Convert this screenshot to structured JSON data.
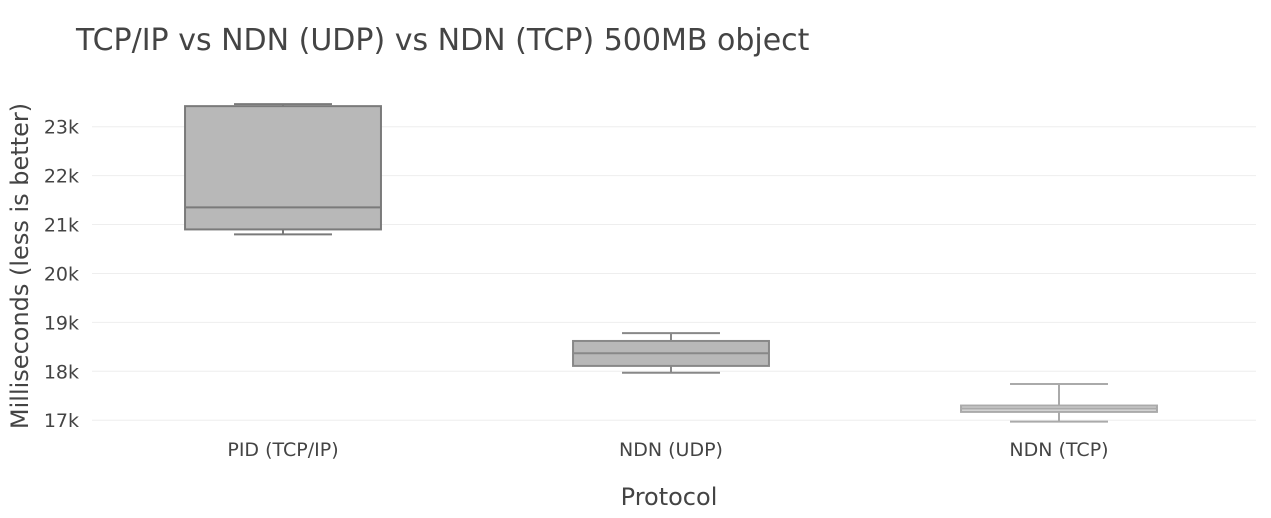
{
  "chart_data": {
    "type": "box",
    "title": "TCP/IP vs NDN (UDP) vs NDN (TCP) 500MB object",
    "xlabel": "Protocol",
    "ylabel": "Milliseconds (less is better)",
    "ylim": [
      16800,
      23750
    ],
    "yticks": [
      17000,
      18000,
      19000,
      20000,
      21000,
      22000,
      23000
    ],
    "ytick_labels": [
      "17k",
      "18k",
      "19k",
      "20k",
      "21k",
      "22k",
      "23k"
    ],
    "grid": true,
    "categories": [
      "PID (TCP/IP)",
      "NDN (UDP)",
      "NDN (TCP)"
    ],
    "boxes": [
      {
        "category": "PID (TCP/IP)",
        "min": 20800,
        "q1": 20900,
        "median": 21350,
        "q3": 23420,
        "max": 23460,
        "fill": "#b8b8b8",
        "line": "#7a7a7a"
      },
      {
        "category": "NDN (UDP)",
        "min": 17970,
        "q1": 18110,
        "median": 18370,
        "q3": 18620,
        "max": 18780,
        "fill": "#b8b8b8",
        "line": "#888888"
      },
      {
        "category": "NDN (TCP)",
        "min": 16970,
        "q1": 17170,
        "median": 17240,
        "q3": 17300,
        "max": 17740,
        "fill": "#d8d8d8",
        "line": "#aaaaaa"
      }
    ]
  }
}
